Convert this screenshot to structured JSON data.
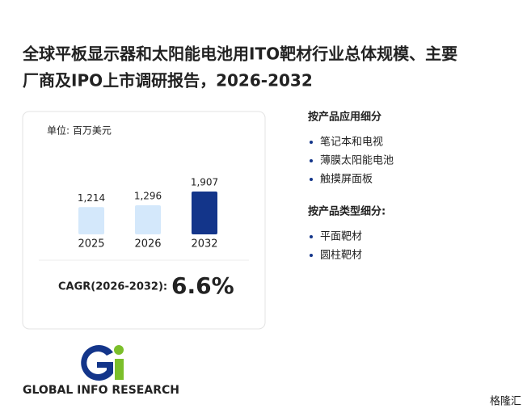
{
  "title_lines": [
    "全球平板显示器和太阳能电池用ITO靶材行业总体规模、主要",
    "厂商及IPO上市调研报告，2026-2032"
  ],
  "chart_data": {
    "type": "bar",
    "unit": "单位: 百万美元",
    "categories": [
      "2025",
      "2026",
      "2032"
    ],
    "values": [
      1214,
      1296,
      1907
    ],
    "value_labels": [
      "1,214",
      "1,296",
      "1,907"
    ],
    "colors": [
      "#d4e8fb",
      "#d4e8fb",
      "#13358a"
    ],
    "ylim": [
      0,
      3600
    ]
  },
  "cagr": {
    "label": "CAGR(2026-2032):",
    "value": "6.6%"
  },
  "segments": [
    {
      "heading": "按产品应用细分",
      "items": [
        "笔记本和电视",
        "薄膜太阳能电池",
        "触摸屏面板"
      ]
    },
    {
      "heading": "按产品类型细分:",
      "items": [
        "平面靶材",
        "圆柱靶材"
      ]
    }
  ],
  "logo_text": "GLOBAL INFO RESEARCH",
  "watermark": "格隆汇"
}
